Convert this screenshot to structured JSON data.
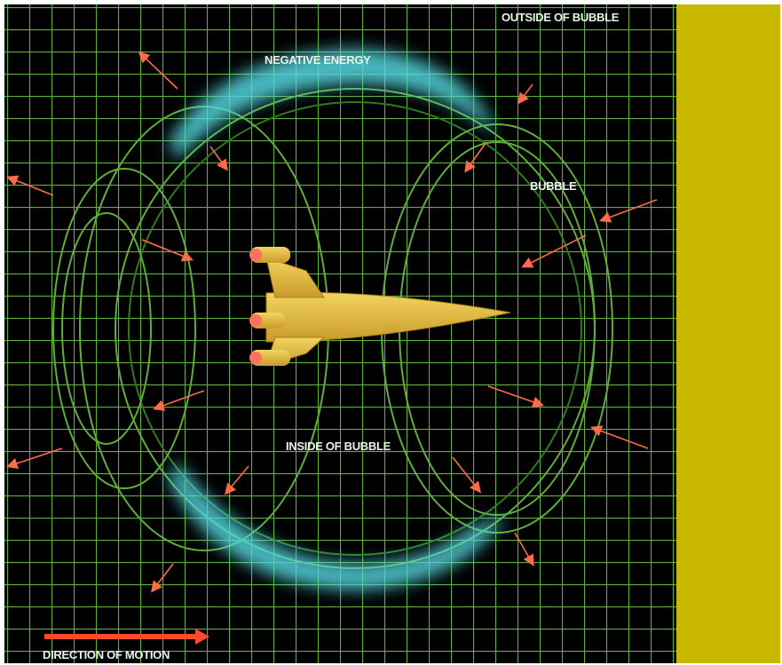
{
  "labels": {
    "outside": "OUTSIDE OF BUBBLE",
    "negative_energy": "NEGATIVE ENERGY",
    "bubble": "BUBBLE",
    "inside": "INSIDE OF BUBBLE",
    "direction": "DIRECTION OF MOTION"
  }
}
